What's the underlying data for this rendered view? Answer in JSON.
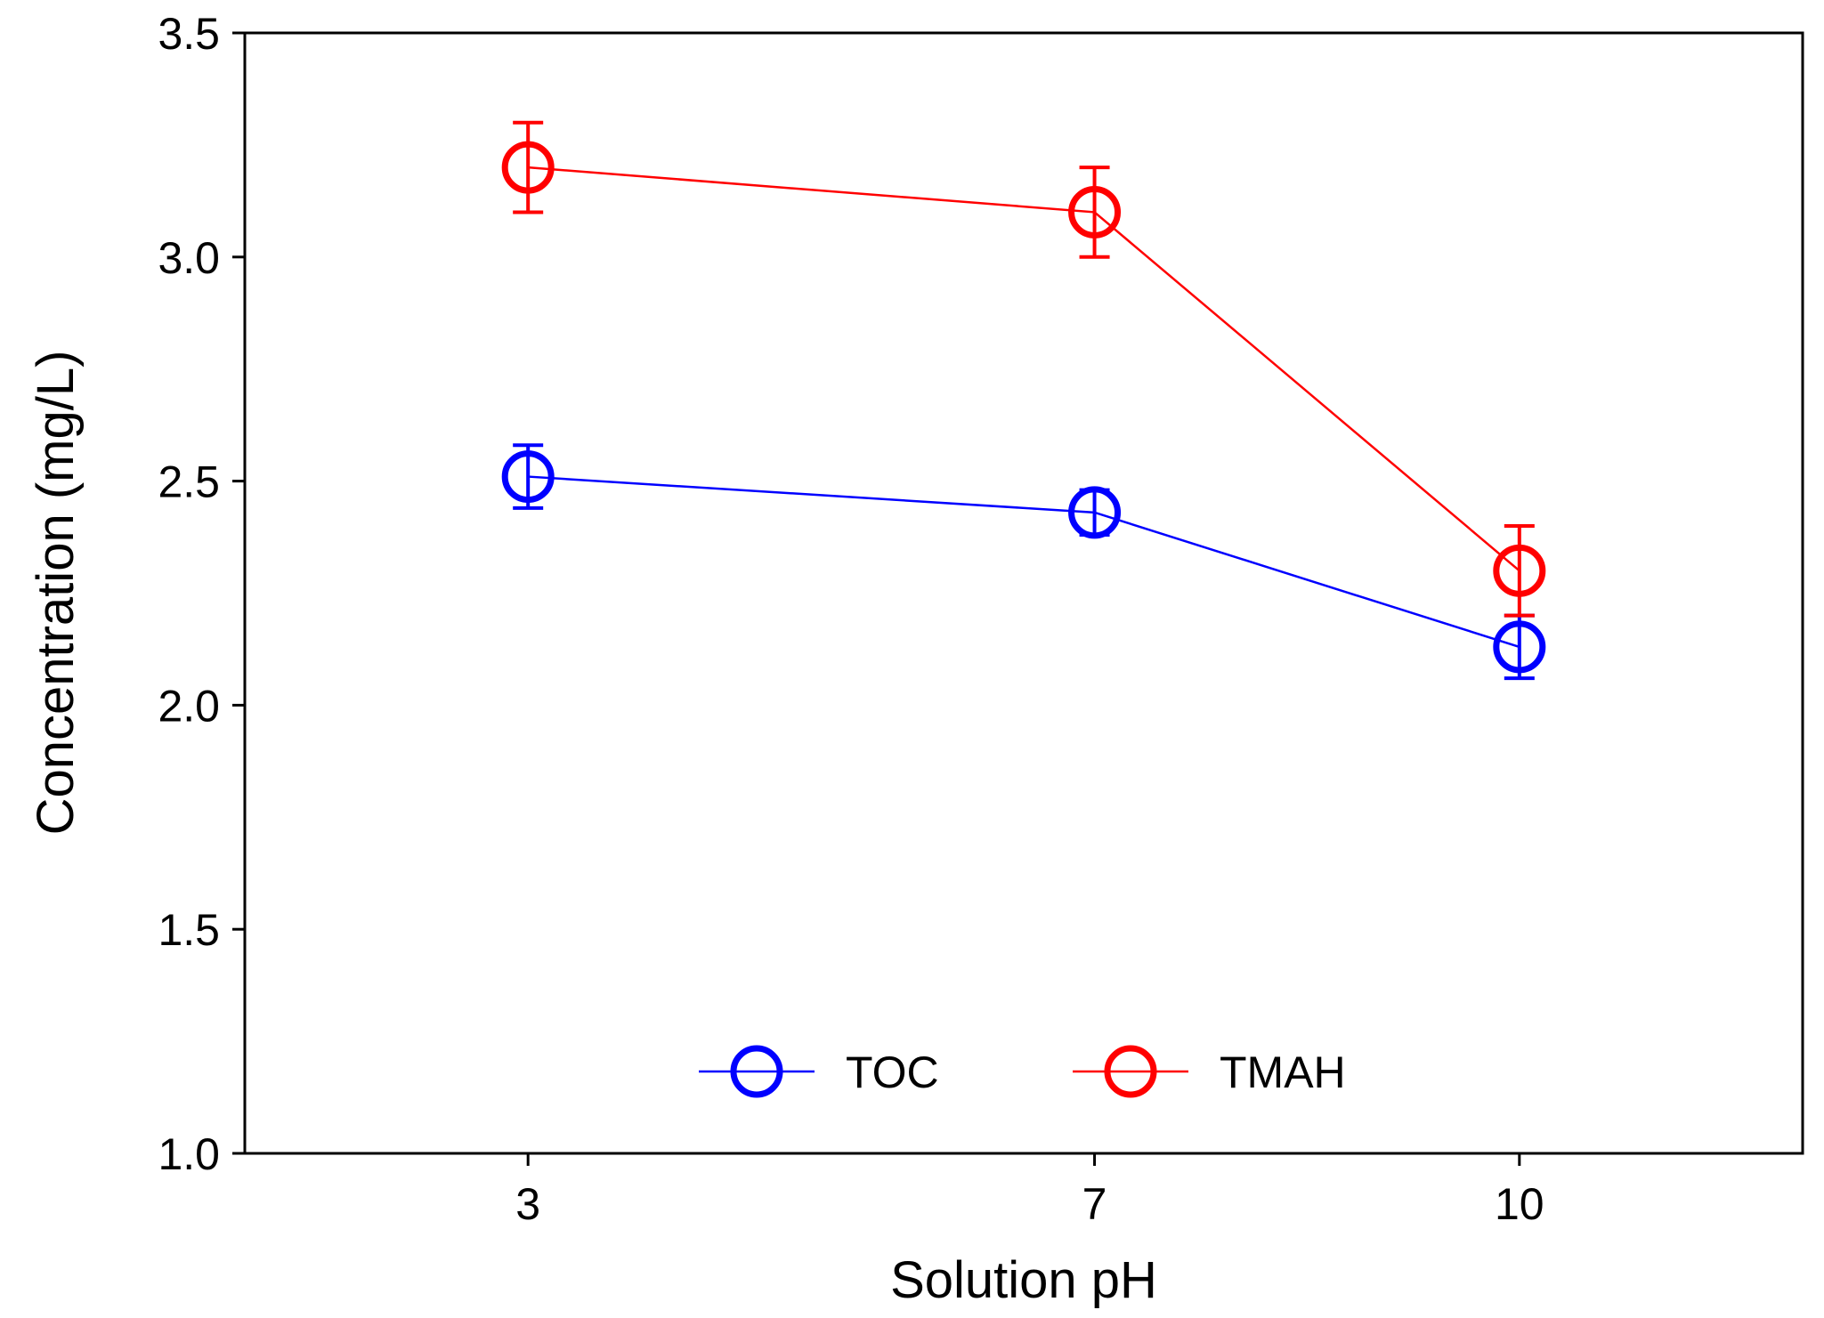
{
  "chart_data": {
    "type": "line",
    "title": "",
    "xlabel": "Solution pH",
    "ylabel": "Concentration (mg/L)",
    "x": [
      3,
      7,
      10
    ],
    "xlim": [
      1,
      12
    ],
    "ylim": [
      1.0,
      3.5
    ],
    "x_ticks": [
      "3",
      "7",
      "10"
    ],
    "y_ticks": [
      "1.0",
      "1.5",
      "2.0",
      "2.5",
      "3.0",
      "3.5"
    ],
    "grid": false,
    "legend_position": "bottom-center",
    "series": [
      {
        "name": "TOC",
        "color": "#0000ff",
        "marker": "open-circle",
        "values": [
          2.51,
          2.43,
          2.13
        ],
        "errors": [
          0.07,
          0.05,
          0.07
        ]
      },
      {
        "name": "TMAH",
        "color": "#ff0000",
        "marker": "open-circle",
        "values": [
          3.2,
          3.1,
          2.3
        ],
        "errors": [
          0.1,
          0.1,
          0.1
        ]
      }
    ]
  }
}
